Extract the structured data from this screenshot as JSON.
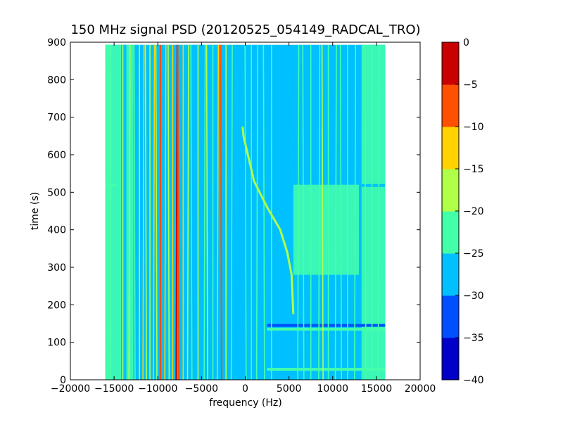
{
  "chart_data": {
    "type": "heatmap",
    "title": "150 MHz signal PSD (20120525_054149_RADCAL_TRO)",
    "xlabel": "frequency (Hz)",
    "ylabel": "time (s)",
    "xlim": [
      -20000,
      20000
    ],
    "ylim": [
      0,
      900
    ],
    "x_ticks": [
      -20000,
      -15000,
      -10000,
      -5000,
      0,
      5000,
      10000,
      15000,
      20000
    ],
    "y_ticks": [
      0,
      100,
      200,
      300,
      400,
      500,
      600,
      700,
      800,
      900
    ],
    "x_tick_labels": [
      "−20000",
      "−15000",
      "−10000",
      "−5000",
      "0",
      "5000",
      "10000",
      "15000",
      "20000"
    ],
    "y_tick_labels": [
      "0",
      "100",
      "200",
      "300",
      "400",
      "500",
      "600",
      "700",
      "800",
      "900"
    ],
    "data_extent": {
      "x": [
        -16000,
        16000
      ],
      "y": [
        0,
        893
      ]
    },
    "grid": false,
    "background_level_db": -27.5,
    "background_regions": [
      {
        "x": [
          -16000,
          -14200
        ],
        "y": [
          0,
          893
        ],
        "level_db": -22.5
      },
      {
        "x": [
          -14200,
          -13600
        ],
        "y": [
          0,
          893
        ],
        "level_db": -27.5
      },
      {
        "x": [
          -13600,
          -12800
        ],
        "y": [
          0,
          893
        ],
        "level_db": -22.5
      },
      {
        "x": [
          -6500,
          -4800
        ],
        "y": [
          0,
          893
        ],
        "level_db": -27.5
      },
      {
        "x": [
          2500,
          13200
        ],
        "y": [
          0,
          280
        ],
        "level_db": -27.5
      },
      {
        "x": [
          5500,
          13000
        ],
        "y": [
          280,
          520
        ],
        "level_db": -22.5
      },
      {
        "x": [
          13300,
          16000
        ],
        "y": [
          0,
          893
        ],
        "level_db": -22.5
      },
      {
        "x": [
          -16000,
          -15300
        ],
        "y": [
          0,
          893
        ],
        "level_db": -22.5
      }
    ],
    "vertical_lines": [
      {
        "x": -15400,
        "level_db": -22.5
      },
      {
        "x": -14000,
        "level_db": -17.5
      },
      {
        "x": -13300,
        "level_db": -17.5
      },
      {
        "x": -12600,
        "level_db": -22.5
      },
      {
        "x": -12100,
        "level_db": -17.5
      },
      {
        "x": -11700,
        "level_db": -12.5
      },
      {
        "x": -11300,
        "level_db": -17.5
      },
      {
        "x": -10900,
        "level_db": -17.5
      },
      {
        "x": -10500,
        "level_db": -12.5
      },
      {
        "x": -10100,
        "level_db": -17.5
      },
      {
        "x": -9700,
        "level_db": -7.5
      },
      {
        "x": -9200,
        "level_db": -12.5
      },
      {
        "x": -8700,
        "level_db": -17.5
      },
      {
        "x": -8300,
        "level_db": -12.5
      },
      {
        "x": -7900,
        "level_db": -2.5
      },
      {
        "x": -7600,
        "level_db": -7.5
      },
      {
        "x": -7100,
        "level_db": -12.5
      },
      {
        "x": -6600,
        "level_db": -17.5
      },
      {
        "x": -6100,
        "level_db": -22.5
      },
      {
        "x": -5400,
        "level_db": -17.5
      },
      {
        "x": -4700,
        "level_db": -22.5
      },
      {
        "x": -4300,
        "level_db": -17.5
      },
      {
        "x": -3700,
        "level_db": -22.5
      },
      {
        "x": -3200,
        "level_db": -12.5
      },
      {
        "x": -2700,
        "level_db": -7.5
      },
      {
        "x": -2200,
        "level_db": -17.5
      },
      {
        "x": -1600,
        "level_db": -22.5
      },
      {
        "x": 100,
        "level_db": -22.5
      },
      {
        "x": 700,
        "level_db": -22.5
      },
      {
        "x": 1300,
        "level_db": -22.5
      },
      {
        "x": 2200,
        "level_db": -22.5
      },
      {
        "x": 3000,
        "level_db": -22.5
      },
      {
        "x": 6000,
        "level_db": -22.5
      },
      {
        "x": 6700,
        "level_db": -22.5
      },
      {
        "x": 7500,
        "level_db": -22.5
      },
      {
        "x": 8400,
        "level_db": -22.5
      },
      {
        "x": 8900,
        "level_db": -17.5
      },
      {
        "x": 9500,
        "level_db": -22.5
      },
      {
        "x": 10300,
        "level_db": -22.5
      },
      {
        "x": 11000,
        "level_db": -22.5
      },
      {
        "x": 11700,
        "level_db": -22.5
      },
      {
        "x": 12500,
        "level_db": -22.5
      },
      {
        "x": 13800,
        "level_db": -22.5
      },
      {
        "x": 14500,
        "level_db": -22.5
      },
      {
        "x": 15200,
        "level_db": -22.5
      }
    ],
    "horizontal_bands": [
      {
        "y": 28,
        "x": [
          2500,
          16000
        ],
        "level_db": -22.5
      },
      {
        "y": 135,
        "x": [
          2500,
          16000
        ],
        "level_db": -22.5
      },
      {
        "y": 145,
        "x": [
          2500,
          16000
        ],
        "level_db": -32.5
      },
      {
        "y": 518,
        "x": [
          -16000,
          -14800
        ],
        "level_db": -22.5
      },
      {
        "y": 518,
        "x": [
          13300,
          16000
        ],
        "level_db": -27.5
      }
    ],
    "drifting_signal": {
      "level_db": -17.5,
      "points": [
        [
          5500,
          175
        ],
        [
          5300,
          280
        ],
        [
          4800,
          340
        ],
        [
          4000,
          400
        ],
        [
          2500,
          460
        ],
        [
          1000,
          530
        ],
        [
          300,
          600
        ],
        [
          -200,
          650
        ],
        [
          -300,
          675
        ]
      ]
    },
    "colorbar": {
      "levels": [
        -40,
        -35,
        -30,
        -25,
        -20,
        -15,
        -10,
        -5,
        0
      ],
      "tick_labels": [
        "−40",
        "−35",
        "−30",
        "−25",
        "−20",
        "−15",
        "−10",
        "−5",
        "0"
      ],
      "colors": [
        "#0000c8",
        "#0050ff",
        "#00c0ff",
        "#44ffaa",
        "#b0ff48",
        "#ffd200",
        "#ff5000",
        "#c80000"
      ]
    }
  }
}
